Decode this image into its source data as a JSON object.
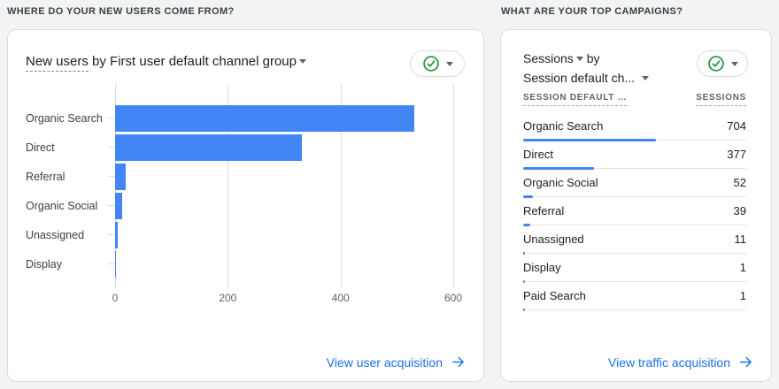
{
  "left_section": {
    "header": "WHERE DO YOUR NEW USERS COME FROM?"
  },
  "left_card": {
    "title": {
      "metric": "New users",
      "rest": " by First user default channel group"
    },
    "status_button": {
      "icon": "check-circle",
      "color": "#1e8e3e"
    },
    "link": {
      "label": "View user acquisition",
      "icon": "arrow-right"
    }
  },
  "right_section": {
    "header": "WHAT ARE YOUR TOP CAMPAIGNS?"
  },
  "right_card": {
    "title": {
      "metric": "Sessions",
      "connector": "by",
      "dimension": "Session default ch..."
    },
    "columns": [
      "SESSION DEFAULT …",
      "SESSIONS"
    ],
    "status_button": {
      "icon": "check-circle",
      "color": "#1e8e3e"
    },
    "link": {
      "label": "View traffic acquisition",
      "icon": "arrow-right"
    }
  },
  "chart_data": [
    {
      "type": "bar",
      "orientation": "horizontal",
      "title": "New users by First user default channel group",
      "categories": [
        "Organic Search",
        "Direct",
        "Referral",
        "Organic Social",
        "Unassigned",
        "Display"
      ],
      "values": [
        531,
        331,
        19,
        13,
        4,
        1
      ],
      "xlabel": "",
      "ylabel": "",
      "xlim": [
        0,
        600
      ],
      "xticks": [
        0,
        200,
        400,
        600
      ],
      "grid": true,
      "legend": false,
      "bar_color": "#4285f4"
    },
    {
      "type": "table",
      "title": "Sessions by Session default channel group",
      "columns": [
        "Session default channel group",
        "Sessions"
      ],
      "rows": [
        {
          "label": "Organic Search",
          "value": 704
        },
        {
          "label": "Direct",
          "value": 377
        },
        {
          "label": "Organic Social",
          "value": 52
        },
        {
          "label": "Referral",
          "value": 39
        },
        {
          "label": "Unassigned",
          "value": 11
        },
        {
          "label": "Display",
          "value": 1
        },
        {
          "label": "Paid Search",
          "value": 1
        }
      ],
      "bar_color": "#4285f4",
      "bar_scale": "fraction_of_total"
    }
  ],
  "colors": {
    "accent_blue": "#4285f4",
    "link_blue": "#1a73e8",
    "check_green": "#1e8e3e"
  }
}
